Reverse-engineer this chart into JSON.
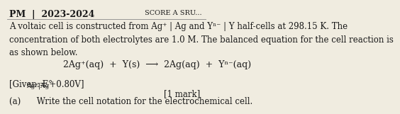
{
  "bg_color": "#f0ece0",
  "header_text": "PM  |  2023-2024",
  "score_text": "SCORE A SRU...",
  "line1": "A voltaic cell is constructed from Ag⁺ | Ag and Yⁿ⁻ | Y half-cells at 298.15 K. The",
  "line2": "concentration of both electrolytes are 1.0 M. The balanced equation for the cell reaction is",
  "line3": "as shown below.",
  "equation": "2Ag⁺(aq)  +  Y(s)  ⟶  2Ag(aq)  +  Yⁿ⁻(aq)",
  "given_prefix": "[Given: E°",
  "given_sub": "Ag⁺|Ag",
  "given_suffix": " = +0.80V]",
  "mark": "[1 mark]",
  "part_a": "(a)      Write the cell notation for the electrochemical cell.",
  "font_color": "#1a1a1a",
  "header_font_size": 9,
  "body_font_size": 8.5,
  "eq_font_size": 9,
  "sub_font_size": 6.5,
  "score_font_size": 7
}
